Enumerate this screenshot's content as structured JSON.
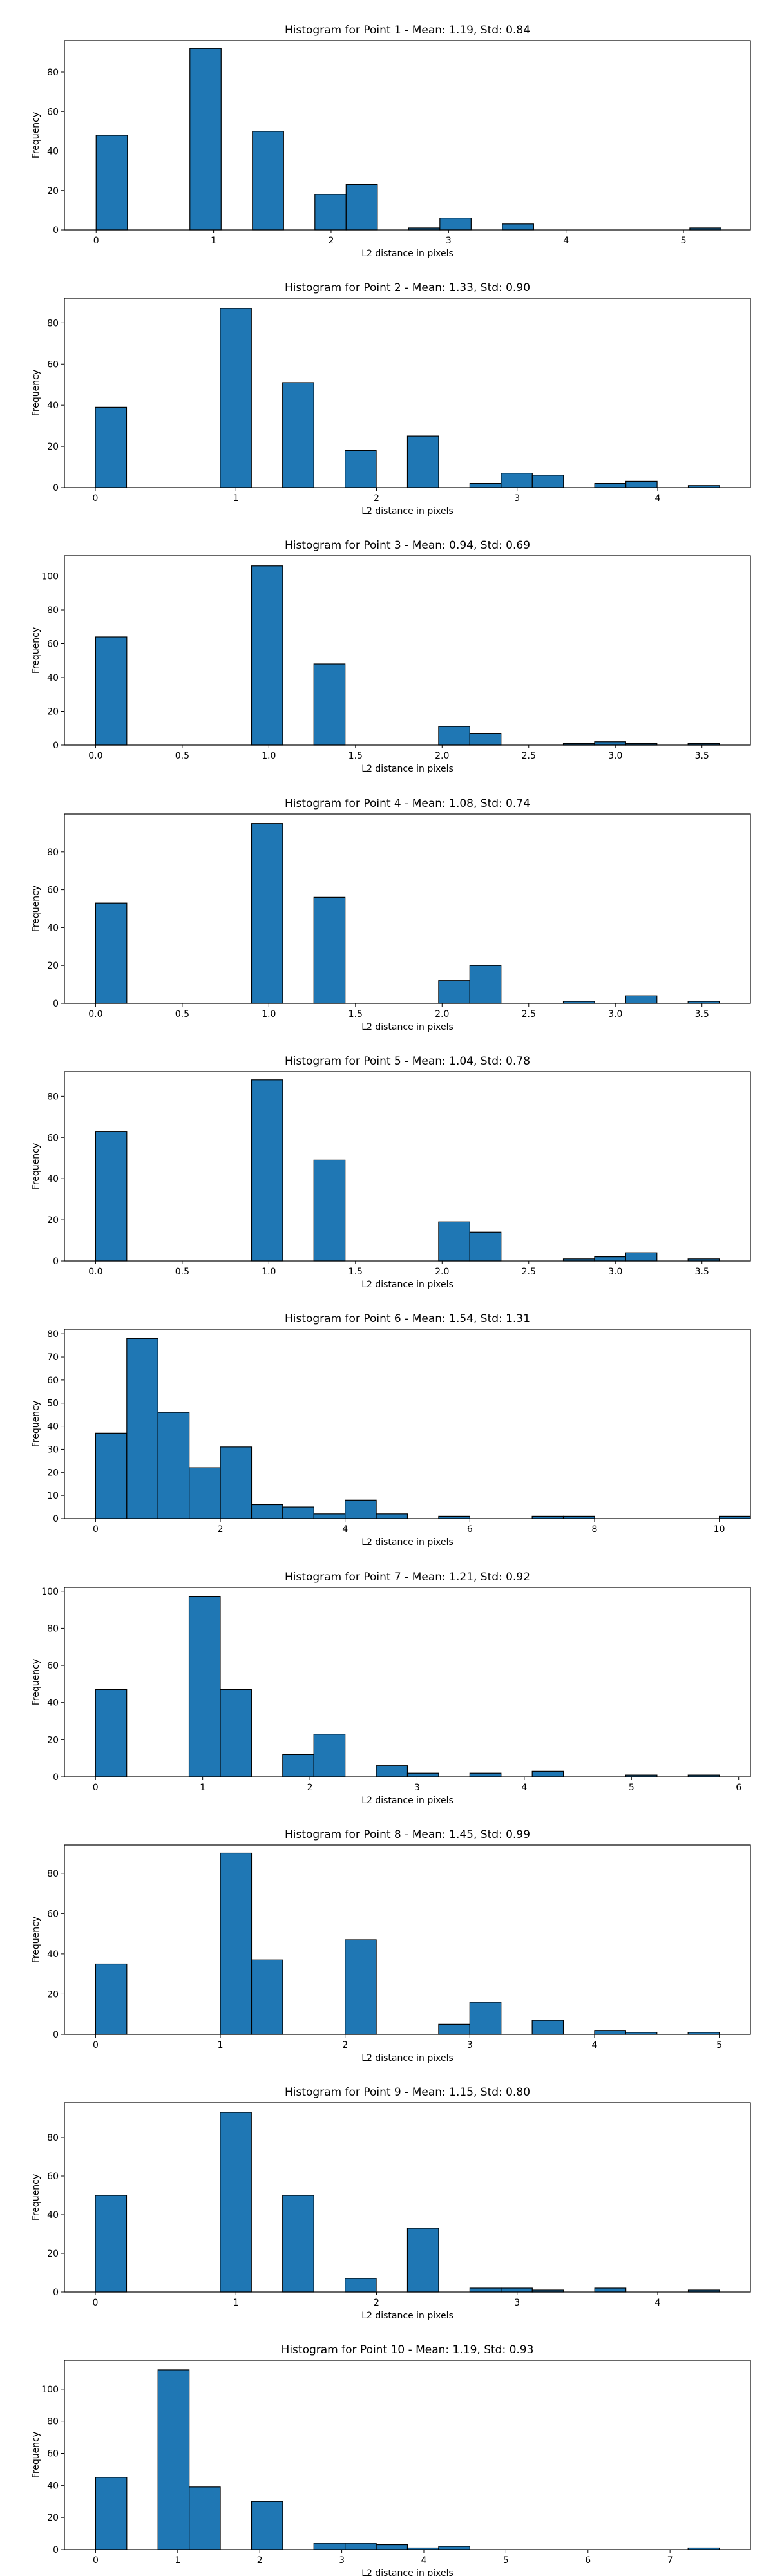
{
  "chart_data": [
    {
      "type": "bar",
      "title": "Histogram for Point 1 - Mean: 1.19, Std: 0.84",
      "xlabel": "L2 distance in pixels",
      "ylabel": "Frequency",
      "xlim": [
        -0.27,
        5.57
      ],
      "ylim": [
        0,
        96
      ],
      "xticks": [
        0,
        1,
        2,
        3,
        4,
        5
      ],
      "yticks": [
        0,
        20,
        40,
        60,
        80
      ],
      "bar_color": "#1f77b4",
      "bins": [
        {
          "x0": 0.0,
          "x1": 0.266,
          "count": 48
        },
        {
          "x0": 0.798,
          "x1": 1.064,
          "count": 92
        },
        {
          "x0": 1.33,
          "x1": 1.596,
          "count": 50
        },
        {
          "x0": 1.862,
          "x1": 2.128,
          "count": 18
        },
        {
          "x0": 2.128,
          "x1": 2.394,
          "count": 23
        },
        {
          "x0": 2.66,
          "x1": 2.926,
          "count": 1
        },
        {
          "x0": 2.926,
          "x1": 3.192,
          "count": 6
        },
        {
          "x0": 3.458,
          "x1": 3.724,
          "count": 3
        },
        {
          "x0": 5.054,
          "x1": 5.32,
          "count": 1
        }
      ]
    },
    {
      "type": "bar",
      "title": "Histogram for Point 2 - Mean: 1.33, Std: 0.90",
      "xlabel": "L2 distance in pixels",
      "ylabel": "Frequency",
      "xlim": [
        -0.22,
        4.66
      ],
      "ylim": [
        0,
        92
      ],
      "xticks": [
        0,
        1,
        2,
        3,
        4
      ],
      "yticks": [
        0,
        20,
        40,
        60,
        80
      ],
      "bar_color": "#1f77b4",
      "bins": [
        {
          "x0": 0.0,
          "x1": 0.222,
          "count": 39
        },
        {
          "x0": 0.888,
          "x1": 1.11,
          "count": 87
        },
        {
          "x0": 1.332,
          "x1": 1.554,
          "count": 51
        },
        {
          "x0": 1.776,
          "x1": 1.998,
          "count": 18
        },
        {
          "x0": 2.22,
          "x1": 2.442,
          "count": 25
        },
        {
          "x0": 2.664,
          "x1": 2.886,
          "count": 2
        },
        {
          "x0": 2.886,
          "x1": 3.108,
          "count": 7
        },
        {
          "x0": 3.108,
          "x1": 3.33,
          "count": 6
        },
        {
          "x0": 3.552,
          "x1": 3.774,
          "count": 2
        },
        {
          "x0": 3.774,
          "x1": 3.996,
          "count": 3
        },
        {
          "x0": 4.218,
          "x1": 4.44,
          "count": 1
        }
      ]
    },
    {
      "type": "bar",
      "title": "Histogram for Point 3 - Mean: 0.94, Std: 0.69",
      "xlabel": "L2 distance in pixels",
      "ylabel": "Frequency",
      "xlim": [
        -0.18,
        3.78
      ],
      "ylim": [
        0,
        112
      ],
      "xticks": [
        0.0,
        0.5,
        1.0,
        1.5,
        2.0,
        2.5,
        3.0,
        3.5
      ],
      "yticks": [
        0,
        20,
        40,
        60,
        80,
        100
      ],
      "bar_color": "#1f77b4",
      "bins": [
        {
          "x0": 0.0,
          "x1": 0.18,
          "count": 64
        },
        {
          "x0": 0.9,
          "x1": 1.08,
          "count": 106
        },
        {
          "x0": 1.26,
          "x1": 1.44,
          "count": 48
        },
        {
          "x0": 1.98,
          "x1": 2.16,
          "count": 11
        },
        {
          "x0": 2.16,
          "x1": 2.34,
          "count": 7
        },
        {
          "x0": 2.7,
          "x1": 2.88,
          "count": 1
        },
        {
          "x0": 2.88,
          "x1": 3.06,
          "count": 2
        },
        {
          "x0": 3.06,
          "x1": 3.24,
          "count": 1
        },
        {
          "x0": 3.42,
          "x1": 3.6,
          "count": 1
        }
      ]
    },
    {
      "type": "bar",
      "title": "Histogram for Point 4 - Mean: 1.08, Std: 0.74",
      "xlabel": "L2 distance in pixels",
      "ylabel": "Frequency",
      "xlim": [
        -0.18,
        3.78
      ],
      "ylim": [
        0,
        100
      ],
      "xticks": [
        0.0,
        0.5,
        1.0,
        1.5,
        2.0,
        2.5,
        3.0,
        3.5
      ],
      "yticks": [
        0,
        20,
        40,
        60,
        80
      ],
      "bar_color": "#1f77b4",
      "bins": [
        {
          "x0": 0.0,
          "x1": 0.18,
          "count": 53
        },
        {
          "x0": 0.9,
          "x1": 1.08,
          "count": 95
        },
        {
          "x0": 1.26,
          "x1": 1.44,
          "count": 56
        },
        {
          "x0": 1.98,
          "x1": 2.16,
          "count": 12
        },
        {
          "x0": 2.16,
          "x1": 2.34,
          "count": 20
        },
        {
          "x0": 2.7,
          "x1": 2.88,
          "count": 1
        },
        {
          "x0": 3.06,
          "x1": 3.24,
          "count": 4
        },
        {
          "x0": 3.42,
          "x1": 3.6,
          "count": 1
        }
      ]
    },
    {
      "type": "bar",
      "title": "Histogram for Point 5 - Mean: 1.04, Std: 0.78",
      "xlabel": "L2 distance in pixels",
      "ylabel": "Frequency",
      "xlim": [
        -0.18,
        3.78
      ],
      "ylim": [
        0,
        92
      ],
      "xticks": [
        0.0,
        0.5,
        1.0,
        1.5,
        2.0,
        2.5,
        3.0,
        3.5
      ],
      "yticks": [
        0,
        20,
        40,
        60,
        80
      ],
      "bar_color": "#1f77b4",
      "bins": [
        {
          "x0": 0.0,
          "x1": 0.18,
          "count": 63
        },
        {
          "x0": 0.9,
          "x1": 1.08,
          "count": 88
        },
        {
          "x0": 1.26,
          "x1": 1.44,
          "count": 49
        },
        {
          "x0": 1.98,
          "x1": 2.16,
          "count": 19
        },
        {
          "x0": 2.16,
          "x1": 2.34,
          "count": 14
        },
        {
          "x0": 2.7,
          "x1": 2.88,
          "count": 1
        },
        {
          "x0": 2.88,
          "x1": 3.06,
          "count": 2
        },
        {
          "x0": 3.06,
          "x1": 3.24,
          "count": 4
        },
        {
          "x0": 3.42,
          "x1": 3.6,
          "count": 1
        }
      ]
    },
    {
      "type": "bar",
      "title": "Histogram for Point 6 - Mean: 1.54, Std: 1.31",
      "xlabel": "L2 distance in pixels",
      "ylabel": "Frequency",
      "xlim": [
        -0.5,
        10.5
      ],
      "ylim": [
        0,
        82
      ],
      "xticks": [
        0,
        2,
        4,
        6,
        8,
        10
      ],
      "yticks": [
        0,
        10,
        20,
        30,
        40,
        50,
        60,
        70,
        80
      ],
      "bar_color": "#1f77b4",
      "bins": [
        {
          "x0": 0.0,
          "x1": 0.5,
          "count": 37
        },
        {
          "x0": 0.5,
          "x1": 1.0,
          "count": 78
        },
        {
          "x0": 1.0,
          "x1": 1.5,
          "count": 46
        },
        {
          "x0": 1.5,
          "x1": 2.0,
          "count": 22
        },
        {
          "x0": 2.0,
          "x1": 2.5,
          "count": 31
        },
        {
          "x0": 2.5,
          "x1": 3.0,
          "count": 6
        },
        {
          "x0": 3.0,
          "x1": 3.5,
          "count": 5
        },
        {
          "x0": 3.5,
          "x1": 4.0,
          "count": 2
        },
        {
          "x0": 4.0,
          "x1": 4.5,
          "count": 8
        },
        {
          "x0": 4.5,
          "x1": 5.0,
          "count": 2
        },
        {
          "x0": 5.5,
          "x1": 6.0,
          "count": 1
        },
        {
          "x0": 7.0,
          "x1": 7.5,
          "count": 1
        },
        {
          "x0": 7.5,
          "x1": 8.0,
          "count": 1
        },
        {
          "x0": 10.0,
          "x1": 10.5,
          "count": 1
        }
      ]
    },
    {
      "type": "bar",
      "title": "Histogram for Point 7 - Mean: 1.21, Std: 0.92",
      "xlabel": "L2 distance in pixels",
      "ylabel": "Frequency",
      "xlim": [
        -0.29,
        6.11
      ],
      "ylim": [
        0,
        102
      ],
      "xticks": [
        0,
        1,
        2,
        3,
        4,
        5,
        6
      ],
      "yticks": [
        0,
        20,
        40,
        60,
        80,
        100
      ],
      "bar_color": "#1f77b4",
      "bins": [
        {
          "x0": 0.0,
          "x1": 0.291,
          "count": 47
        },
        {
          "x0": 0.873,
          "x1": 1.164,
          "count": 97
        },
        {
          "x0": 1.164,
          "x1": 1.455,
          "count": 47
        },
        {
          "x0": 1.746,
          "x1": 2.037,
          "count": 12
        },
        {
          "x0": 2.037,
          "x1": 2.328,
          "count": 23
        },
        {
          "x0": 2.619,
          "x1": 2.91,
          "count": 6
        },
        {
          "x0": 2.91,
          "x1": 3.201,
          "count": 2
        },
        {
          "x0": 3.492,
          "x1": 3.783,
          "count": 2
        },
        {
          "x0": 4.074,
          "x1": 4.365,
          "count": 3
        },
        {
          "x0": 4.947,
          "x1": 5.238,
          "count": 1
        },
        {
          "x0": 5.529,
          "x1": 5.82,
          "count": 1
        }
      ]
    },
    {
      "type": "bar",
      "title": "Histogram for Point 8 - Mean: 1.45, Std: 0.99",
      "xlabel": "L2 distance in pixels",
      "ylabel": "Frequency",
      "xlim": [
        -0.25,
        5.25
      ],
      "ylim": [
        0,
        94
      ],
      "xticks": [
        0,
        1,
        2,
        3,
        4,
        5
      ],
      "yticks": [
        0,
        20,
        40,
        60,
        80
      ],
      "bar_color": "#1f77b4",
      "bins": [
        {
          "x0": 0.0,
          "x1": 0.25,
          "count": 35
        },
        {
          "x0": 1.0,
          "x1": 1.25,
          "count": 90
        },
        {
          "x0": 1.25,
          "x1": 1.5,
          "count": 37
        },
        {
          "x0": 2.0,
          "x1": 2.25,
          "count": 47
        },
        {
          "x0": 2.75,
          "x1": 3.0,
          "count": 5
        },
        {
          "x0": 3.0,
          "x1": 3.25,
          "count": 16
        },
        {
          "x0": 3.5,
          "x1": 3.75,
          "count": 7
        },
        {
          "x0": 4.0,
          "x1": 4.25,
          "count": 2
        },
        {
          "x0": 4.25,
          "x1": 4.5,
          "count": 1
        },
        {
          "x0": 4.75,
          "x1": 5.0,
          "count": 1
        }
      ]
    },
    {
      "type": "bar",
      "title": "Histogram for Point 9 - Mean: 1.15, Std: 0.80",
      "xlabel": "L2 distance in pixels",
      "ylabel": "Frequency",
      "xlim": [
        -0.22,
        4.66
      ],
      "ylim": [
        0,
        98
      ],
      "xticks": [
        0,
        1,
        2,
        3,
        4
      ],
      "yticks": [
        0,
        20,
        40,
        60,
        80
      ],
      "bar_color": "#1f77b4",
      "bins": [
        {
          "x0": 0.0,
          "x1": 0.222,
          "count": 50
        },
        {
          "x0": 0.888,
          "x1": 1.11,
          "count": 93
        },
        {
          "x0": 1.332,
          "x1": 1.554,
          "count": 50
        },
        {
          "x0": 1.776,
          "x1": 1.998,
          "count": 7
        },
        {
          "x0": 2.22,
          "x1": 2.442,
          "count": 33
        },
        {
          "x0": 2.664,
          "x1": 2.886,
          "count": 2
        },
        {
          "x0": 2.886,
          "x1": 3.108,
          "count": 2
        },
        {
          "x0": 3.108,
          "x1": 3.33,
          "count": 1
        },
        {
          "x0": 3.552,
          "x1": 3.774,
          "count": 2
        },
        {
          "x0": 4.218,
          "x1": 4.44,
          "count": 1
        }
      ]
    },
    {
      "type": "bar",
      "title": "Histogram for Point 10 - Mean: 1.19, Std: 0.93",
      "xlabel": "L2 distance in pixels",
      "ylabel": "Frequency",
      "xlim": [
        -0.38,
        7.98
      ],
      "ylim": [
        0,
        118
      ],
      "xticks": [
        0,
        1,
        2,
        3,
        4,
        5,
        6,
        7
      ],
      "yticks": [
        0,
        20,
        40,
        60,
        80,
        100
      ],
      "bar_color": "#1f77b4",
      "bins": [
        {
          "x0": 0.0,
          "x1": 0.38,
          "count": 45
        },
        {
          "x0": 0.76,
          "x1": 1.14,
          "count": 112
        },
        {
          "x0": 1.14,
          "x1": 1.52,
          "count": 39
        },
        {
          "x0": 1.9,
          "x1": 2.28,
          "count": 30
        },
        {
          "x0": 2.66,
          "x1": 3.04,
          "count": 4
        },
        {
          "x0": 3.04,
          "x1": 3.42,
          "count": 4
        },
        {
          "x0": 3.42,
          "x1": 3.8,
          "count": 3
        },
        {
          "x0": 3.8,
          "x1": 4.18,
          "count": 1
        },
        {
          "x0": 4.18,
          "x1": 4.56,
          "count": 2
        },
        {
          "x0": 7.22,
          "x1": 7.6,
          "count": 1
        }
      ]
    }
  ]
}
